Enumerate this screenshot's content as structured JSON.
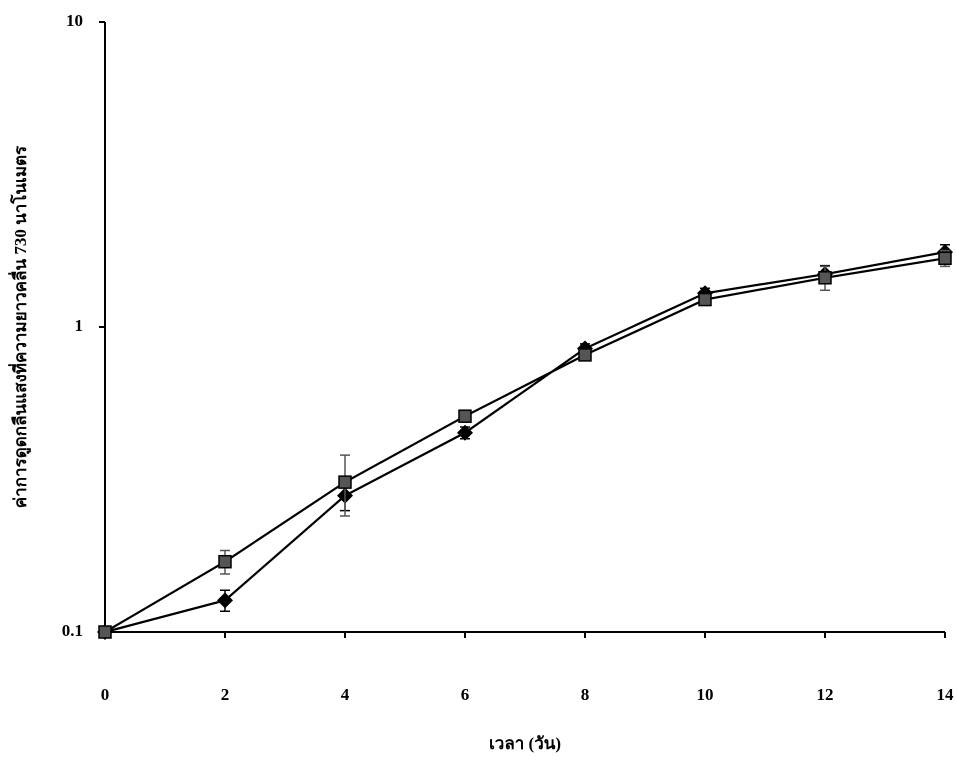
{
  "chart_data": {
    "type": "line",
    "y_label": "ค่าการดูดกลืนแสงที่ความยาวคลื่น 730 นาโนเมตร",
    "x_label": "เวลา (วัน)",
    "x": [
      0,
      2,
      4,
      6,
      8,
      10,
      12,
      14
    ],
    "series": [
      {
        "color": "#000000",
        "marker": "diamond",
        "values": [
          0.1,
          0.127,
          0.28,
          0.45,
          0.85,
          1.29,
          1.49,
          1.76
        ],
        "errors": [
          0.003,
          0.01,
          0.03,
          0.02,
          0.03,
          0.05,
          0.1,
          0.1
        ]
      },
      {
        "color": "#555555",
        "marker": "square",
        "values": [
          0.1,
          0.17,
          0.31,
          0.51,
          0.81,
          1.23,
          1.45,
          1.68
        ],
        "errors": [
          0.003,
          0.015,
          0.07,
          0.02,
          0.03,
          0.05,
          0.13,
          0.1
        ]
      }
    ],
    "xlim": [
      0,
      14
    ],
    "xticks": [
      0,
      2,
      4,
      6,
      8,
      10,
      12,
      14
    ],
    "ylim": [
      0.1,
      10
    ],
    "yticks": [
      0.1,
      1,
      10
    ],
    "yscale": "log",
    "grid": false
  }
}
